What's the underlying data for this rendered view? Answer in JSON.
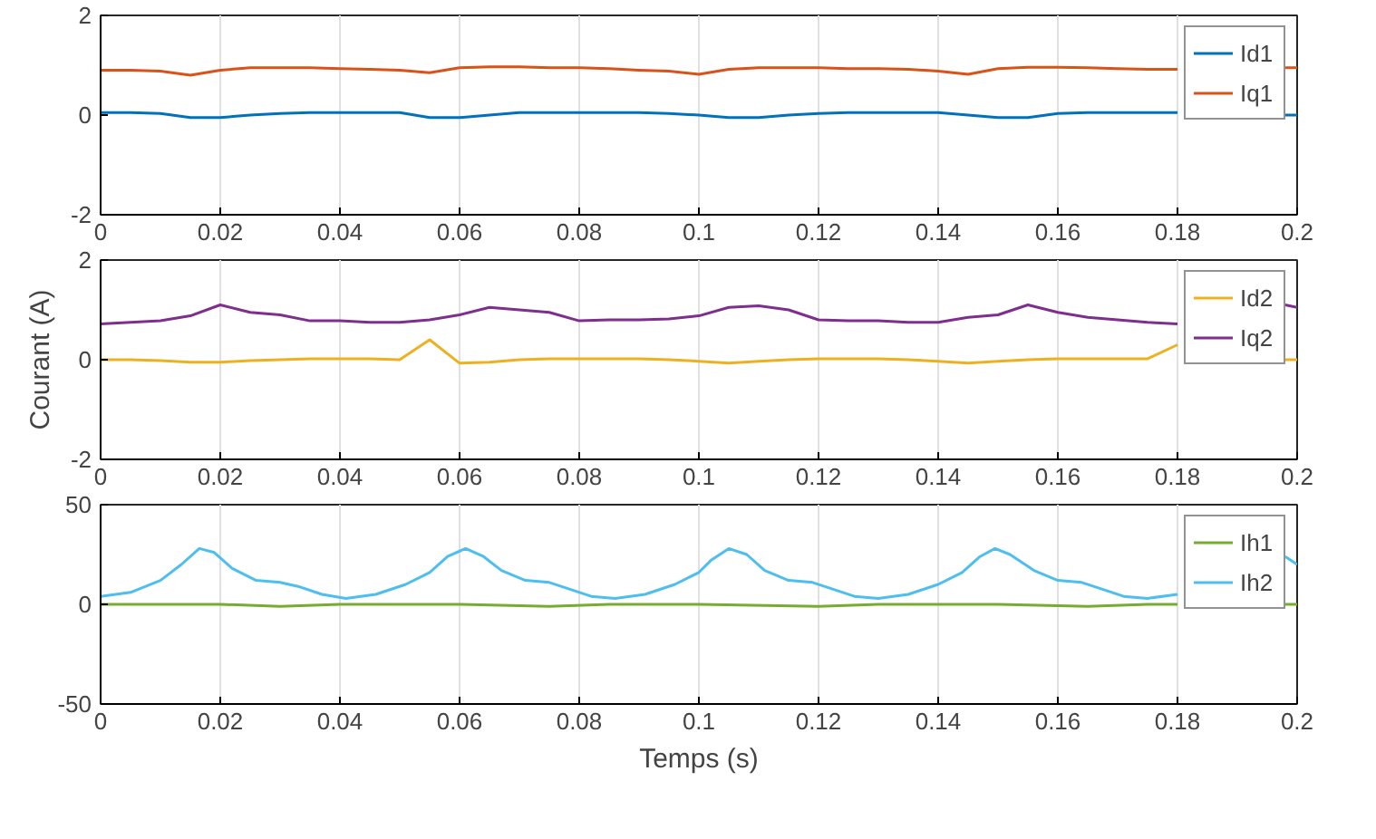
{
  "chart_data": [
    {
      "type": "line",
      "x": [
        0,
        0.005,
        0.01,
        0.015,
        0.02,
        0.025,
        0.03,
        0.035,
        0.04,
        0.045,
        0.05,
        0.055,
        0.06,
        0.065,
        0.07,
        0.075,
        0.08,
        0.085,
        0.09,
        0.095,
        0.1,
        0.105,
        0.11,
        0.115,
        0.12,
        0.125,
        0.13,
        0.135,
        0.14,
        0.145,
        0.15,
        0.155,
        0.16,
        0.165,
        0.17,
        0.175,
        0.18,
        0.19,
        0.198,
        0.2
      ],
      "series": [
        {
          "name": "Id1",
          "color": "#0072bd",
          "values": [
            0.05,
            0.05,
            0.03,
            -0.05,
            -0.05,
            0.0,
            0.03,
            0.05,
            0.05,
            0.05,
            0.05,
            -0.05,
            -0.05,
            0.0,
            0.05,
            0.05,
            0.05,
            0.05,
            0.05,
            0.03,
            0.0,
            -0.05,
            -0.05,
            0.0,
            0.03,
            0.05,
            0.05,
            0.05,
            0.05,
            0.0,
            -0.05,
            -0.05,
            0.03,
            0.05,
            0.05,
            0.05,
            0.05,
            null,
            0.0,
            0.0
          ]
        },
        {
          "name": "Iq1",
          "color": "#d95319",
          "values": [
            0.9,
            0.9,
            0.88,
            0.8,
            0.9,
            0.95,
            0.95,
            0.95,
            0.93,
            0.92,
            0.9,
            0.85,
            0.95,
            0.97,
            0.97,
            0.95,
            0.95,
            0.93,
            0.9,
            0.88,
            0.82,
            0.92,
            0.95,
            0.95,
            0.95,
            0.93,
            0.93,
            0.92,
            0.88,
            0.82,
            0.93,
            0.96,
            0.96,
            0.95,
            0.93,
            0.92,
            0.92,
            null,
            0.95,
            0.95
          ]
        }
      ],
      "xlim": [
        0,
        0.2
      ],
      "xticks": [
        0,
        0.02,
        0.04,
        0.06,
        0.08,
        0.1,
        0.12,
        0.14,
        0.16,
        0.18,
        0.2
      ],
      "ylim": [
        -2,
        2
      ],
      "yticks": [
        -2,
        0,
        2
      ],
      "grid": "x",
      "legend": "top right"
    },
    {
      "type": "line",
      "ylabel": "Courant (A)",
      "x": [
        0,
        0.005,
        0.01,
        0.015,
        0.02,
        0.025,
        0.03,
        0.035,
        0.04,
        0.045,
        0.05,
        0.055,
        0.06,
        0.065,
        0.07,
        0.075,
        0.08,
        0.085,
        0.09,
        0.095,
        0.1,
        0.105,
        0.11,
        0.115,
        0.12,
        0.125,
        0.13,
        0.135,
        0.14,
        0.145,
        0.15,
        0.155,
        0.16,
        0.165,
        0.17,
        0.175,
        0.18,
        0.19,
        0.198,
        0.2
      ],
      "series": [
        {
          "name": "Id2",
          "color": "#edb120",
          "values": [
            0,
            0,
            -0.02,
            -0.05,
            -0.05,
            -0.02,
            0,
            0.02,
            0.02,
            0.02,
            0,
            0.4,
            -0.07,
            -0.05,
            0,
            0.02,
            0.02,
            0.02,
            0.02,
            0,
            -0.03,
            -0.07,
            -0.03,
            0,
            0.02,
            0.02,
            0.02,
            0,
            -0.03,
            -0.07,
            -0.03,
            0,
            0.02,
            0.02,
            0.02,
            0.02,
            0.3,
            null,
            0,
            0
          ]
        },
        {
          "name": "Iq2",
          "color": "#7e2f8e",
          "values": [
            0.72,
            0.75,
            0.78,
            0.88,
            1.1,
            0.95,
            0.9,
            0.78,
            0.78,
            0.75,
            0.75,
            0.8,
            0.9,
            1.05,
            1.0,
            0.95,
            0.78,
            0.8,
            0.8,
            0.82,
            0.88,
            1.05,
            1.08,
            1.0,
            0.8,
            0.78,
            0.78,
            0.75,
            0.75,
            0.85,
            0.9,
            1.1,
            0.95,
            0.85,
            0.8,
            0.75,
            0.72,
            null,
            1.1,
            1.05
          ]
        }
      ],
      "xlim": [
        0,
        0.2
      ],
      "xticks": [
        0,
        0.02,
        0.04,
        0.06,
        0.08,
        0.1,
        0.12,
        0.14,
        0.16,
        0.18,
        0.2
      ],
      "ylim": [
        -2,
        2
      ],
      "yticks": [
        -2,
        0,
        2
      ],
      "grid": "x",
      "legend": "top right"
    },
    {
      "type": "line",
      "xlabel": "Temps (s)",
      "series": [
        {
          "name": "Ih1",
          "color": "#77ac30",
          "x": [
            0,
            0.02,
            0.03,
            0.04,
            0.06,
            0.075,
            0.085,
            0.1,
            0.12,
            0.13,
            0.15,
            0.165,
            0.175,
            0.18,
            0.19,
            0.198,
            0.2
          ],
          "values": [
            0,
            0,
            -1,
            0,
            0,
            -1,
            0,
            0,
            -1,
            0,
            0,
            -1,
            0,
            0,
            null,
            0,
            0
          ]
        },
        {
          "name": "Ih2",
          "color": "#4dbeee",
          "x": [
            0,
            0.005,
            0.01,
            0.0135,
            0.0165,
            0.019,
            0.022,
            0.026,
            0.03,
            0.033,
            0.037,
            0.041,
            0.046,
            0.051,
            0.055,
            0.058,
            0.061,
            0.064,
            0.067,
            0.071,
            0.075,
            0.078,
            0.082,
            0.086,
            0.091,
            0.096,
            0.1,
            0.102,
            0.105,
            0.108,
            0.111,
            0.115,
            0.119,
            0.122,
            0.126,
            0.13,
            0.135,
            0.14,
            0.144,
            0.147,
            0.1495,
            0.152,
            0.156,
            0.16,
            0.164,
            0.167,
            0.171,
            0.175,
            0.18,
            0.19,
            0.198,
            0.2
          ],
          "values": [
            4,
            6,
            12,
            20,
            28,
            26,
            18,
            12,
            11,
            9,
            5,
            3,
            5,
            10,
            16,
            24,
            28,
            24,
            17,
            12,
            11,
            8,
            4,
            3,
            5,
            10,
            16,
            22,
            28,
            25,
            17,
            12,
            11,
            8,
            4,
            3,
            5,
            10,
            16,
            24,
            28,
            25,
            17,
            12,
            11,
            8,
            4,
            3,
            5,
            null,
            24,
            20
          ]
        }
      ],
      "xlim": [
        0,
        0.2
      ],
      "xticks": [
        0,
        0.02,
        0.04,
        0.06,
        0.08,
        0.1,
        0.12,
        0.14,
        0.16,
        0.18,
        0.2
      ],
      "ylim": [
        -50,
        50
      ],
      "yticks": [
        -50,
        0,
        50
      ],
      "grid": "x",
      "legend": "top right"
    }
  ]
}
